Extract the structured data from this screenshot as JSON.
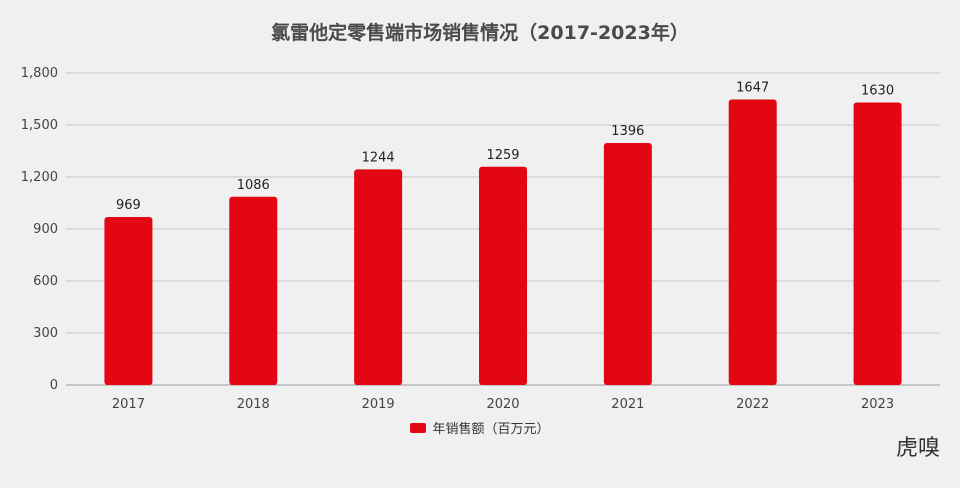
{
  "chart_data": {
    "type": "bar",
    "title": "氯雷他定零售端市场销售情况（2017-2023年）",
    "categories": [
      "2017",
      "2018",
      "2019",
      "2020",
      "2021",
      "2022",
      "2023"
    ],
    "series": [
      {
        "name": "年销售额（百万元）",
        "values": [
          969,
          1086,
          1244,
          1259,
          1396,
          1647,
          1630
        ],
        "color": "#e30613"
      }
    ],
    "data_labels": [
      "969",
      "1086",
      "1244",
      "1259",
      "1396",
      "1647",
      "1630"
    ],
    "ylim": [
      0,
      1800
    ],
    "yticks": [
      0,
      300,
      600,
      900,
      1200,
      1500,
      1800
    ],
    "ytick_labels": [
      "0",
      "300",
      "600",
      "900",
      "1,200",
      "1,500",
      "1,800"
    ],
    "grid": true,
    "legend_position": "bottom"
  },
  "watermark": "虎嗅"
}
